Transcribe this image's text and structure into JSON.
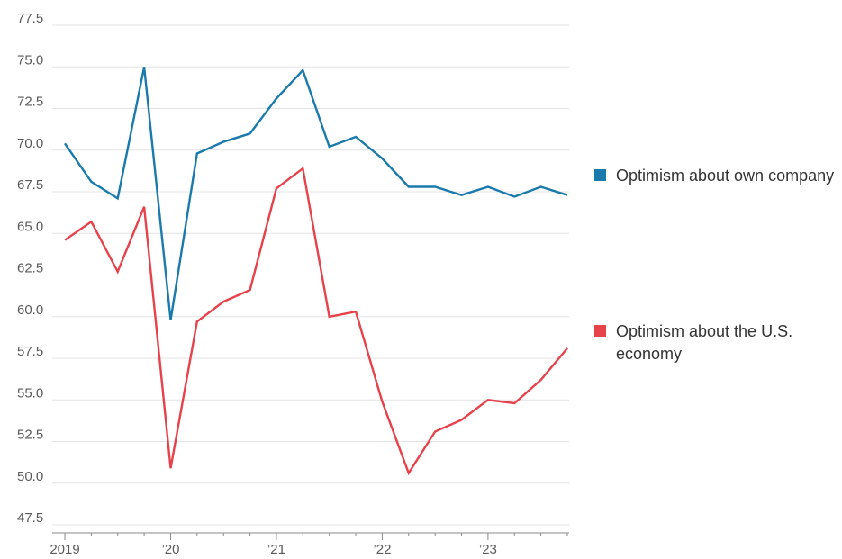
{
  "chart_data": {
    "type": "line",
    "title": "",
    "xlabel": "",
    "ylabel": "",
    "ylim": [
      47.5,
      77.5
    ],
    "yticks": [
      "77.5",
      "75.0",
      "72.5",
      "70.0",
      "67.5",
      "65.0",
      "62.5",
      "60.0",
      "57.5",
      "55.0",
      "52.5",
      "50.0",
      "47.5"
    ],
    "xtick_labels": [
      "2019",
      "’20",
      "’21",
      "’22",
      "’23"
    ],
    "x": [
      "2019 Q1",
      "2019 Q2",
      "2019 Q3",
      "2019 Q4",
      "2020 Q1",
      "2020 Q2",
      "2020 Q3",
      "2020 Q4",
      "2021 Q1",
      "2021 Q2",
      "2021 Q3",
      "2021 Q4",
      "2022 Q1",
      "2022 Q2",
      "2022 Q3",
      "2022 Q4",
      "2023 Q1",
      "2023 Q2",
      "2023 Q3",
      "2023 Q4"
    ],
    "grid": true,
    "legend_position": "right",
    "series": [
      {
        "name": "Optimism about own company",
        "color": "#1a7aac",
        "values": [
          70.4,
          68.1,
          67.1,
          75.0,
          59.8,
          69.8,
          70.5,
          71.0,
          73.1,
          74.8,
          70.2,
          70.8,
          69.5,
          67.8,
          67.8,
          67.3,
          67.8,
          67.2,
          67.8,
          67.3
        ]
      },
      {
        "name": "Optimism about the U.S. economy",
        "color": "#e6424b",
        "values": [
          64.6,
          65.7,
          62.7,
          66.6,
          50.9,
          59.7,
          60.9,
          61.6,
          67.7,
          68.9,
          60.0,
          60.3,
          54.9,
          50.6,
          53.1,
          53.8,
          55.0,
          54.8,
          56.2,
          58.1
        ]
      }
    ]
  }
}
